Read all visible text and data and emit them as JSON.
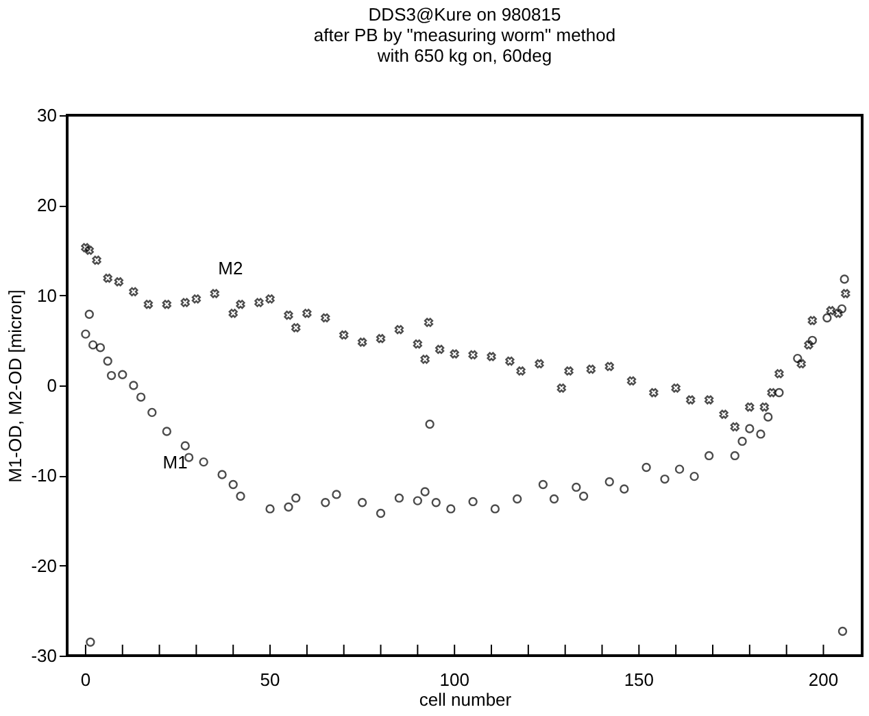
{
  "chart_data": {
    "type": "scatter",
    "title": "DDS3@Kure on 980815\nafter PB by \"measuring worm\" method\nwith 650 kg on, 60deg",
    "xlabel": "cell number",
    "ylabel": "M1-OD, M2-OD [micron]",
    "xlim": [
      -5,
      210.5
    ],
    "ylim": [
      -30,
      30
    ],
    "xticks": [
      0,
      {
        "value": 10,
        "label": null
      },
      {
        "value": 20,
        "label": null
      },
      {
        "value": 30,
        "label": null
      },
      {
        "value": 40,
        "label": null
      },
      50,
      {
        "value": 60,
        "label": null
      },
      {
        "value": 70,
        "label": null
      },
      {
        "value": 80,
        "label": null
      },
      {
        "value": 90,
        "label": null
      },
      100,
      {
        "value": 110,
        "label": null
      },
      {
        "value": 120,
        "label": null
      },
      {
        "value": 130,
        "label": null
      },
      {
        "value": 140,
        "label": null
      },
      150,
      {
        "value": 160,
        "label": null
      },
      {
        "value": 170,
        "label": null
      },
      {
        "value": 180,
        "label": null
      },
      {
        "value": 190,
        "label": null
      },
      200
    ],
    "yticks": [
      -30,
      -20,
      -10,
      0,
      10,
      20,
      30
    ],
    "grid": false,
    "legend": false,
    "series": [
      {
        "name": "M2",
        "color": "#000000",
        "marker": "cross",
        "x": [
          0,
          1,
          3,
          6,
          9,
          13,
          17,
          22,
          27,
          30,
          35,
          40,
          42,
          47,
          50,
          55,
          57,
          60,
          65,
          70,
          75,
          80,
          85,
          90,
          92,
          93,
          96,
          100,
          105,
          110,
          115,
          118,
          123,
          129,
          131,
          137,
          142,
          148,
          154,
          160,
          164,
          169,
          173,
          176,
          180,
          184,
          186,
          188,
          194,
          196,
          197,
          202,
          204,
          206
        ],
        "values": [
          15.3,
          15.0,
          13.9,
          11.9,
          11.5,
          10.4,
          9.0,
          9.0,
          9.2,
          9.6,
          10.2,
          8.0,
          9.0,
          9.2,
          9.6,
          7.8,
          6.4,
          8.0,
          7.5,
          5.6,
          4.8,
          5.2,
          6.2,
          4.6,
          2.9,
          7.0,
          4.0,
          3.5,
          3.4,
          3.2,
          2.7,
          1.6,
          2.4,
          -0.3,
          1.6,
          1.8,
          2.1,
          0.5,
          -0.8,
          -0.3,
          -1.6,
          -1.6,
          -3.2,
          -4.6,
          -2.4,
          -2.4,
          -0.8,
          1.3,
          2.4,
          4.5,
          7.2,
          8.3,
          8.0,
          10.2
        ]
      },
      {
        "name": "M1",
        "color": "#000000",
        "marker": "circle",
        "x": [
          0,
          1,
          1.3,
          2,
          4,
          6,
          7,
          10,
          13,
          15,
          18,
          22,
          27,
          28,
          32,
          37,
          40,
          42,
          50,
          55,
          57,
          65,
          68,
          75,
          80,
          85,
          90,
          92,
          93.3,
          95,
          99,
          105,
          111,
          117,
          124,
          127,
          133,
          135,
          142,
          146,
          152,
          157,
          161,
          165,
          169,
          176,
          178,
          180,
          183,
          185,
          188,
          193,
          197,
          201,
          205,
          205.2,
          205.7
        ],
        "values": [
          5.7,
          7.9,
          -28.5,
          4.5,
          4.2,
          2.7,
          1.1,
          1.2,
          0,
          -1.3,
          -3,
          -5.1,
          -6.7,
          -8,
          -8.5,
          -9.9,
          -11,
          -12.3,
          -13.7,
          -13.5,
          -12.5,
          -13,
          -12.1,
          -13,
          -14.2,
          -12.5,
          -12.8,
          -11.8,
          -4.3,
          -13,
          -13.7,
          -12.9,
          -13.7,
          -12.6,
          -11,
          -12.6,
          -11.3,
          -12.3,
          -10.7,
          -11.5,
          -9.1,
          -10.4,
          -9.3,
          -10.1,
          -7.8,
          -7.8,
          -6.2,
          -4.8,
          -5.4,
          -3.5,
          -0.8,
          3,
          5,
          7.5,
          8.5,
          -27.3,
          11.8
        ]
      }
    ]
  }
}
